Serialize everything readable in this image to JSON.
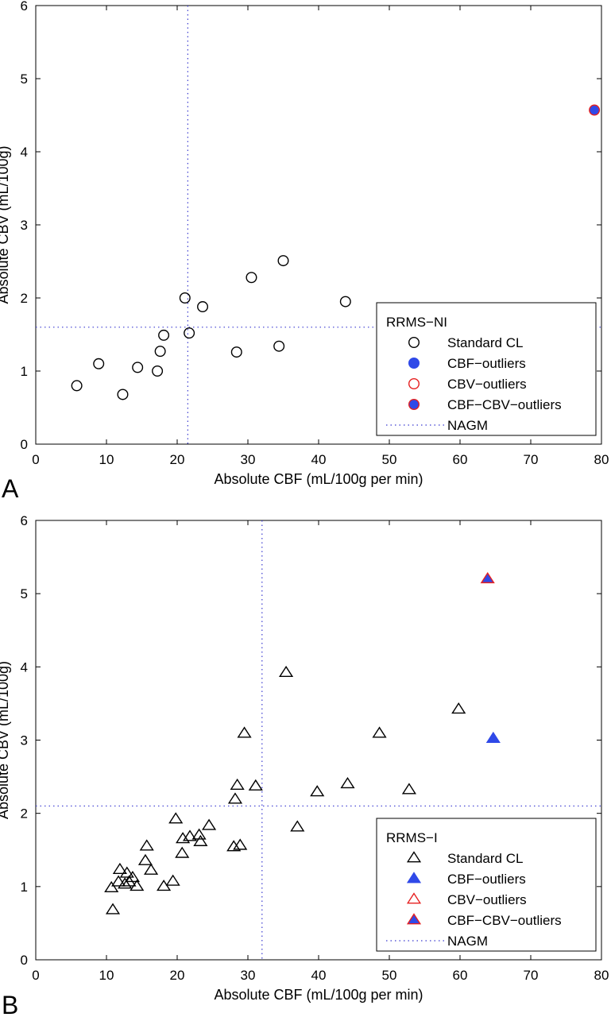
{
  "chart_data": [
    {
      "type": "scatter",
      "panel_label": "A",
      "xlabel": "Absolute CBF (mL/100g per min)",
      "ylabel": "Absolute CBV (mL/100g)",
      "xlim": [
        0,
        80
      ],
      "ylim": [
        0,
        6
      ],
      "xticks": [
        0,
        10,
        20,
        30,
        40,
        50,
        60,
        70,
        80
      ],
      "yticks": [
        0,
        1,
        2,
        3,
        4,
        5,
        6
      ],
      "marker": "circle",
      "reference_lines": {
        "x": 21.5,
        "y": 1.6,
        "style": "dotted",
        "color": "#3a3ad0"
      },
      "legend": {
        "title": "RRMS−NI",
        "placement": "bottom-right",
        "entries": [
          {
            "label": "Standard CL",
            "marker": "circle",
            "fill": "none",
            "stroke": "#000000"
          },
          {
            "label": "CBF−outliers",
            "marker": "circle",
            "fill": "#2f49e8",
            "stroke": "#2f49e8"
          },
          {
            "label": "CBV−outliers",
            "marker": "circle",
            "fill": "none",
            "stroke": "#e62020"
          },
          {
            "label": "CBF−CBV−outliers",
            "marker": "circle",
            "fill": "#2f49e8",
            "stroke": "#e62020"
          },
          {
            "label": "NAGM",
            "marker": "dotted-line",
            "stroke": "#3a3ad0"
          }
        ]
      },
      "series": [
        {
          "name": "Standard CL",
          "x": [
            5.8,
            8.9,
            12.3,
            14.4,
            17.2,
            17.6,
            18.1,
            21.1,
            21.7,
            23.6,
            28.4,
            30.5,
            34.4,
            35.0,
            43.8
          ],
          "y": [
            0.8,
            1.1,
            0.68,
            1.05,
            1.0,
            1.27,
            1.49,
            2.0,
            1.52,
            1.88,
            1.26,
            2.28,
            1.34,
            2.51,
            1.95
          ]
        },
        {
          "name": "CBF−outliers",
          "x": [],
          "y": []
        },
        {
          "name": "CBV−outliers",
          "x": [],
          "y": []
        },
        {
          "name": "CBF−CBV−outliers",
          "x": [
            79.0
          ],
          "y": [
            4.57
          ]
        }
      ]
    },
    {
      "type": "scatter",
      "panel_label": "B",
      "xlabel": "Absolute CBF (mL/100g per min)",
      "ylabel": "Absolute CBV (mL/100g)",
      "xlim": [
        0,
        80
      ],
      "ylim": [
        0,
        6
      ],
      "xticks": [
        0,
        10,
        20,
        30,
        40,
        50,
        60,
        70,
        80
      ],
      "yticks": [
        0,
        1,
        2,
        3,
        4,
        5,
        6
      ],
      "marker": "triangle",
      "reference_lines": {
        "x": 32.0,
        "y": 2.1,
        "style": "dotted",
        "color": "#3a3ad0"
      },
      "legend": {
        "title": "RRMS−I",
        "placement": "bottom-right",
        "entries": [
          {
            "label": "Standard CL",
            "marker": "triangle",
            "fill": "none",
            "stroke": "#000000"
          },
          {
            "label": "CBF−outliers",
            "marker": "triangle",
            "fill": "#2f49e8",
            "stroke": "#2f49e8"
          },
          {
            "label": "CBV−outliers",
            "marker": "triangle",
            "fill": "none",
            "stroke": "#e62020"
          },
          {
            "label": "CBF−CBV−outliers",
            "marker": "triangle",
            "fill": "#2f49e8",
            "stroke": "#e62020"
          },
          {
            "label": "NAGM",
            "marker": "dotted-line",
            "stroke": "#3a3ad0"
          }
        ]
      },
      "series": [
        {
          "name": "Standard CL",
          "x": [
            10.7,
            10.9,
            11.7,
            11.9,
            12.6,
            12.9,
            13.2,
            13.7,
            14.3,
            15.5,
            15.7,
            16.3,
            18.1,
            19.4,
            19.8,
            20.7,
            20.8,
            21.8,
            23.1,
            23.3,
            24.5,
            28.0,
            28.2,
            28.5,
            28.9,
            29.5,
            31.1,
            35.4,
            37.0,
            39.8,
            44.1,
            48.6,
            52.8,
            59.8
          ],
          "y": [
            0.98,
            0.68,
            1.06,
            1.23,
            1.03,
            1.18,
            1.06,
            1.12,
            1.0,
            1.35,
            1.55,
            1.22,
            1.0,
            1.07,
            1.92,
            1.45,
            1.65,
            1.68,
            1.7,
            1.61,
            1.83,
            1.54,
            2.19,
            2.38,
            1.56,
            3.09,
            2.37,
            3.92,
            1.81,
            2.29,
            2.4,
            3.09,
            2.32,
            3.42
          ]
        },
        {
          "name": "CBF−outliers",
          "x": [
            64.7
          ],
          "y": [
            3.02
          ]
        },
        {
          "name": "CBV−outliers",
          "x": [],
          "y": []
        },
        {
          "name": "CBF−CBV−outliers",
          "x": [
            63.9
          ],
          "y": [
            5.2
          ]
        }
      ]
    }
  ]
}
